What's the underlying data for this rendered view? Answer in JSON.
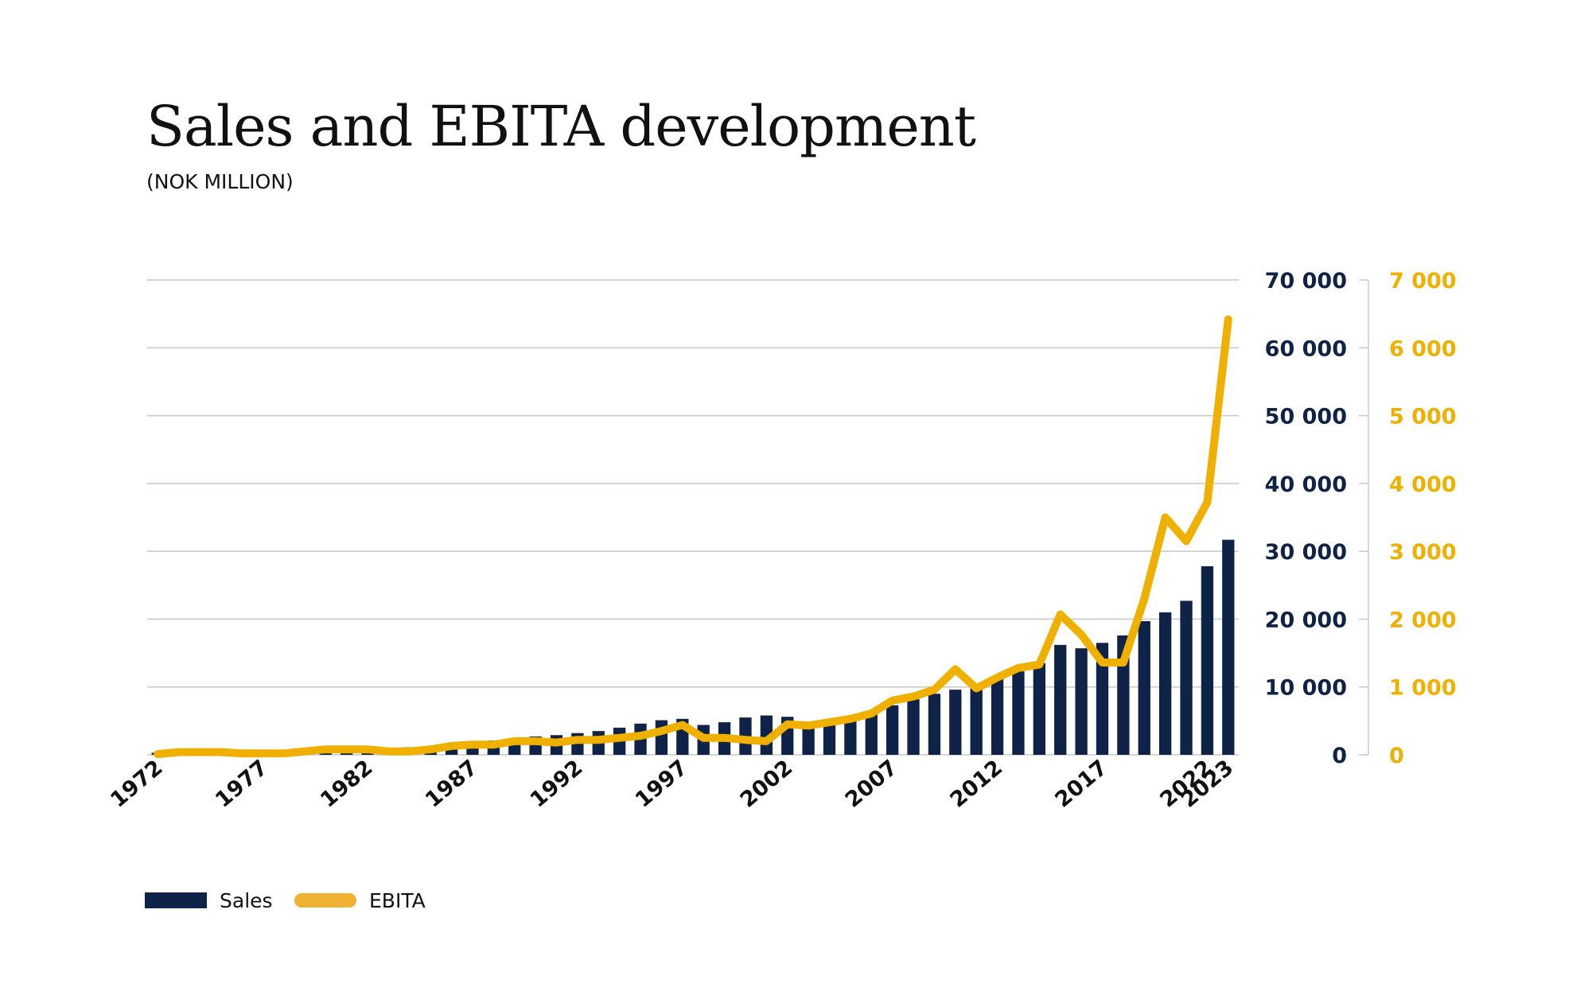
{
  "title": "Sales and EBITA development",
  "subtitle": "(NOK MILLION)",
  "legend": {
    "sales": "Sales",
    "ebita": "EBITA"
  },
  "colors": {
    "sales": "#0e2347",
    "ebita": "#f0b000",
    "grid": "#c8c8c8"
  },
  "chart_data": {
    "type": "bar",
    "x": [
      1972,
      1973,
      1974,
      1975,
      1976,
      1977,
      1978,
      1979,
      1980,
      1981,
      1982,
      1983,
      1984,
      1985,
      1986,
      1987,
      1988,
      1989,
      1990,
      1991,
      1992,
      1993,
      1994,
      1995,
      1996,
      1997,
      1998,
      1999,
      2000,
      2001,
      2002,
      2003,
      2004,
      2005,
      2006,
      2007,
      2008,
      2009,
      2010,
      2011,
      2012,
      2013,
      2014,
      2015,
      2016,
      2017,
      2018,
      2019,
      2020,
      2021,
      2022,
      2023
    ],
    "x_tick_labels": [
      "1972",
      "1977",
      "1982",
      "1987",
      "1992",
      "1997",
      "2002",
      "2007",
      "2012",
      "2017",
      "2022",
      "2023"
    ],
    "y_left": {
      "ylim": [
        0,
        70000
      ],
      "ticks": [
        "0",
        "10 000",
        "20 000",
        "30 000",
        "40 000",
        "50 000",
        "60 000",
        "70 000"
      ],
      "color": "#0e2347"
    },
    "y_right": {
      "ylim": [
        0,
        7000
      ],
      "ticks": [
        "0",
        "1 000",
        "2 000",
        "3 000",
        "4 000",
        "5 000",
        "6 000",
        "7 000"
      ],
      "color": "#f0b000"
    },
    "grid": true,
    "legend_position": "bottom-left",
    "series": [
      {
        "name": "Sales",
        "type": "bar",
        "axis": "left",
        "values": [
          300,
          350,
          400,
          450,
          500,
          550,
          600,
          650,
          700,
          750,
          800,
          900,
          1100,
          1300,
          1600,
          1900,
          2100,
          2400,
          2700,
          2900,
          3200,
          3500,
          4000,
          4600,
          5100,
          5300,
          4400,
          4800,
          5500,
          5800,
          5600,
          4800,
          5000,
          5300,
          6200,
          7300,
          8200,
          9000,
          9600,
          10200,
          11300,
          12300,
          13500,
          16200,
          15700,
          16500,
          17600,
          19700,
          21000,
          22700,
          27800,
          31700
        ]
      },
      {
        "name": "EBITA",
        "type": "line",
        "axis": "right",
        "values": [
          10,
          40,
          40,
          40,
          20,
          20,
          20,
          50,
          80,
          80,
          80,
          50,
          50,
          80,
          130,
          150,
          150,
          200,
          200,
          180,
          220,
          220,
          250,
          280,
          350,
          440,
          250,
          250,
          220,
          200,
          450,
          430,
          480,
          530,
          610,
          800,
          860,
          960,
          1260,
          980,
          1140,
          1280,
          1330,
          2070,
          1770,
          1360,
          1360,
          2300,
          3500,
          3150,
          3720,
          6420
        ]
      }
    ]
  }
}
